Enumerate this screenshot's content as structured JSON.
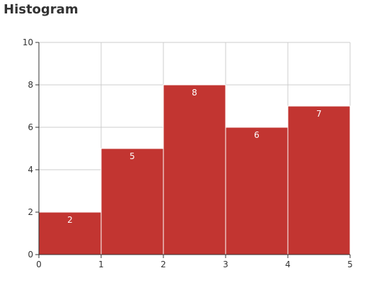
{
  "chart_data": {
    "type": "bar",
    "title": "Histogram",
    "bins": [
      [
        0,
        1
      ],
      [
        1,
        2
      ],
      [
        2,
        3
      ],
      [
        3,
        4
      ],
      [
        4,
        5
      ]
    ],
    "values": [
      2,
      5,
      8,
      6,
      7
    ],
    "xlim": [
      0,
      5
    ],
    "ylim": [
      0,
      10
    ],
    "x_ticks": [
      "0",
      "1",
      "2",
      "3",
      "4",
      "5"
    ],
    "y_ticks": [
      "0",
      "2",
      "4",
      "6",
      "8",
      "10"
    ],
    "grid": true,
    "bar_color": "#c23531",
    "label_color": "#ffffff",
    "grid_color": "#cccccc",
    "axis_color": "#333333"
  }
}
